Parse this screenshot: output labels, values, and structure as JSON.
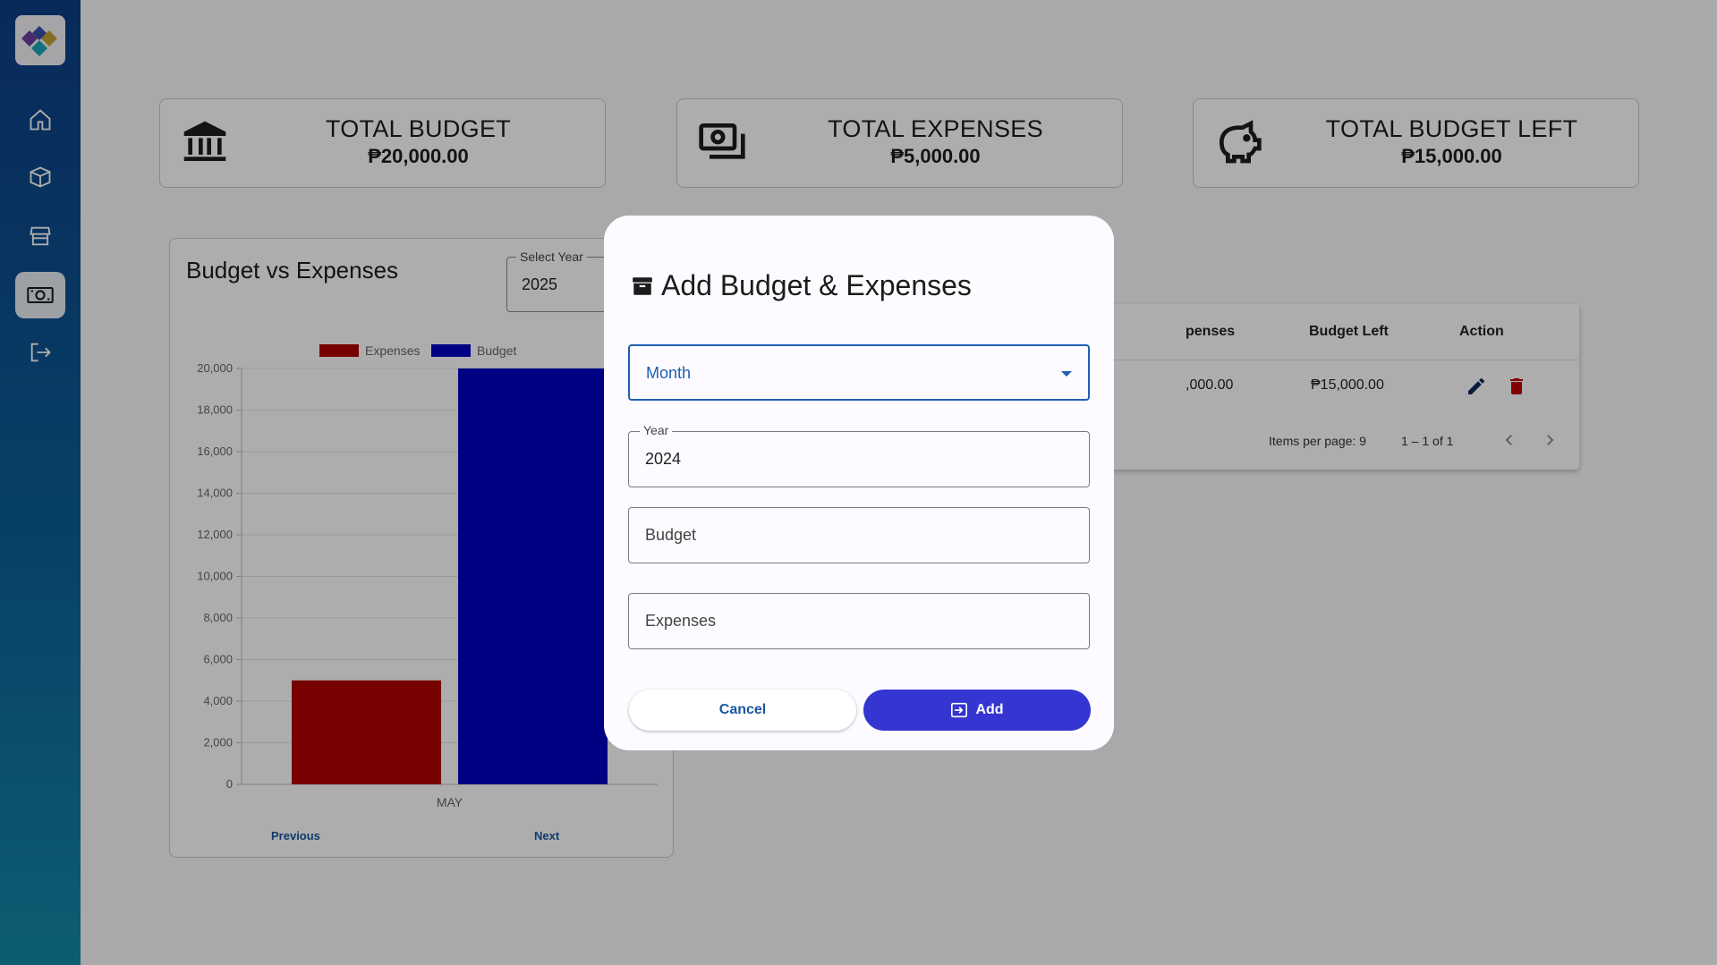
{
  "sidebar": {
    "items": [
      {
        "icon": "home-icon"
      },
      {
        "icon": "box-icon"
      },
      {
        "icon": "store-icon"
      },
      {
        "icon": "money-icon",
        "active": true
      },
      {
        "icon": "logout-icon"
      }
    ]
  },
  "cards": [
    {
      "icon": "bank-icon",
      "title": "TOTAL BUDGET",
      "value": "₱20,000.00"
    },
    {
      "icon": "cash-icon",
      "title": "TOTAL EXPENSES",
      "value": "₱5,000.00"
    },
    {
      "icon": "piggy-bank-icon",
      "title": "TOTAL BUDGET LEFT",
      "value": "₱15,000.00"
    }
  ],
  "chart_section": {
    "title": "Budget vs Expenses",
    "year_label": "Select Year",
    "year_value": "2025",
    "previous": "Previous",
    "next": "Next"
  },
  "chart_data": {
    "type": "bar",
    "categories": [
      "MAY"
    ],
    "series": [
      {
        "name": "Expenses",
        "values": [
          5000
        ],
        "color": "#b00000"
      },
      {
        "name": "Budget",
        "values": [
          20000
        ],
        "color": "#0000c0"
      }
    ],
    "ylim": [
      0,
      20000
    ],
    "yticks": [
      "0",
      "2,000",
      "4,000",
      "6,000",
      "8,000",
      "10,000",
      "12,000",
      "14,000",
      "16,000",
      "18,000",
      "20,000"
    ],
    "legend": "top",
    "grid": true
  },
  "table": {
    "headers": {
      "expenses": "penses",
      "budget_left": "Budget Left",
      "action": "Action"
    },
    "row": {
      "expenses": ",000.00",
      "budget_left": "₱15,000.00"
    },
    "items_per_page": "Items per page: 9",
    "range": "1 – 1 of 1"
  },
  "dialog": {
    "title": "Add Budget & Expenses",
    "month_placeholder": "Month",
    "year_label": "Year",
    "year_value": "2024",
    "budget_placeholder": "Budget",
    "expenses_placeholder": "Expenses",
    "cancel_label": "Cancel",
    "add_label": "Add"
  },
  "colors": {
    "accent": "#3535d1",
    "expenses": "#b00000",
    "budget": "#0000c0"
  }
}
